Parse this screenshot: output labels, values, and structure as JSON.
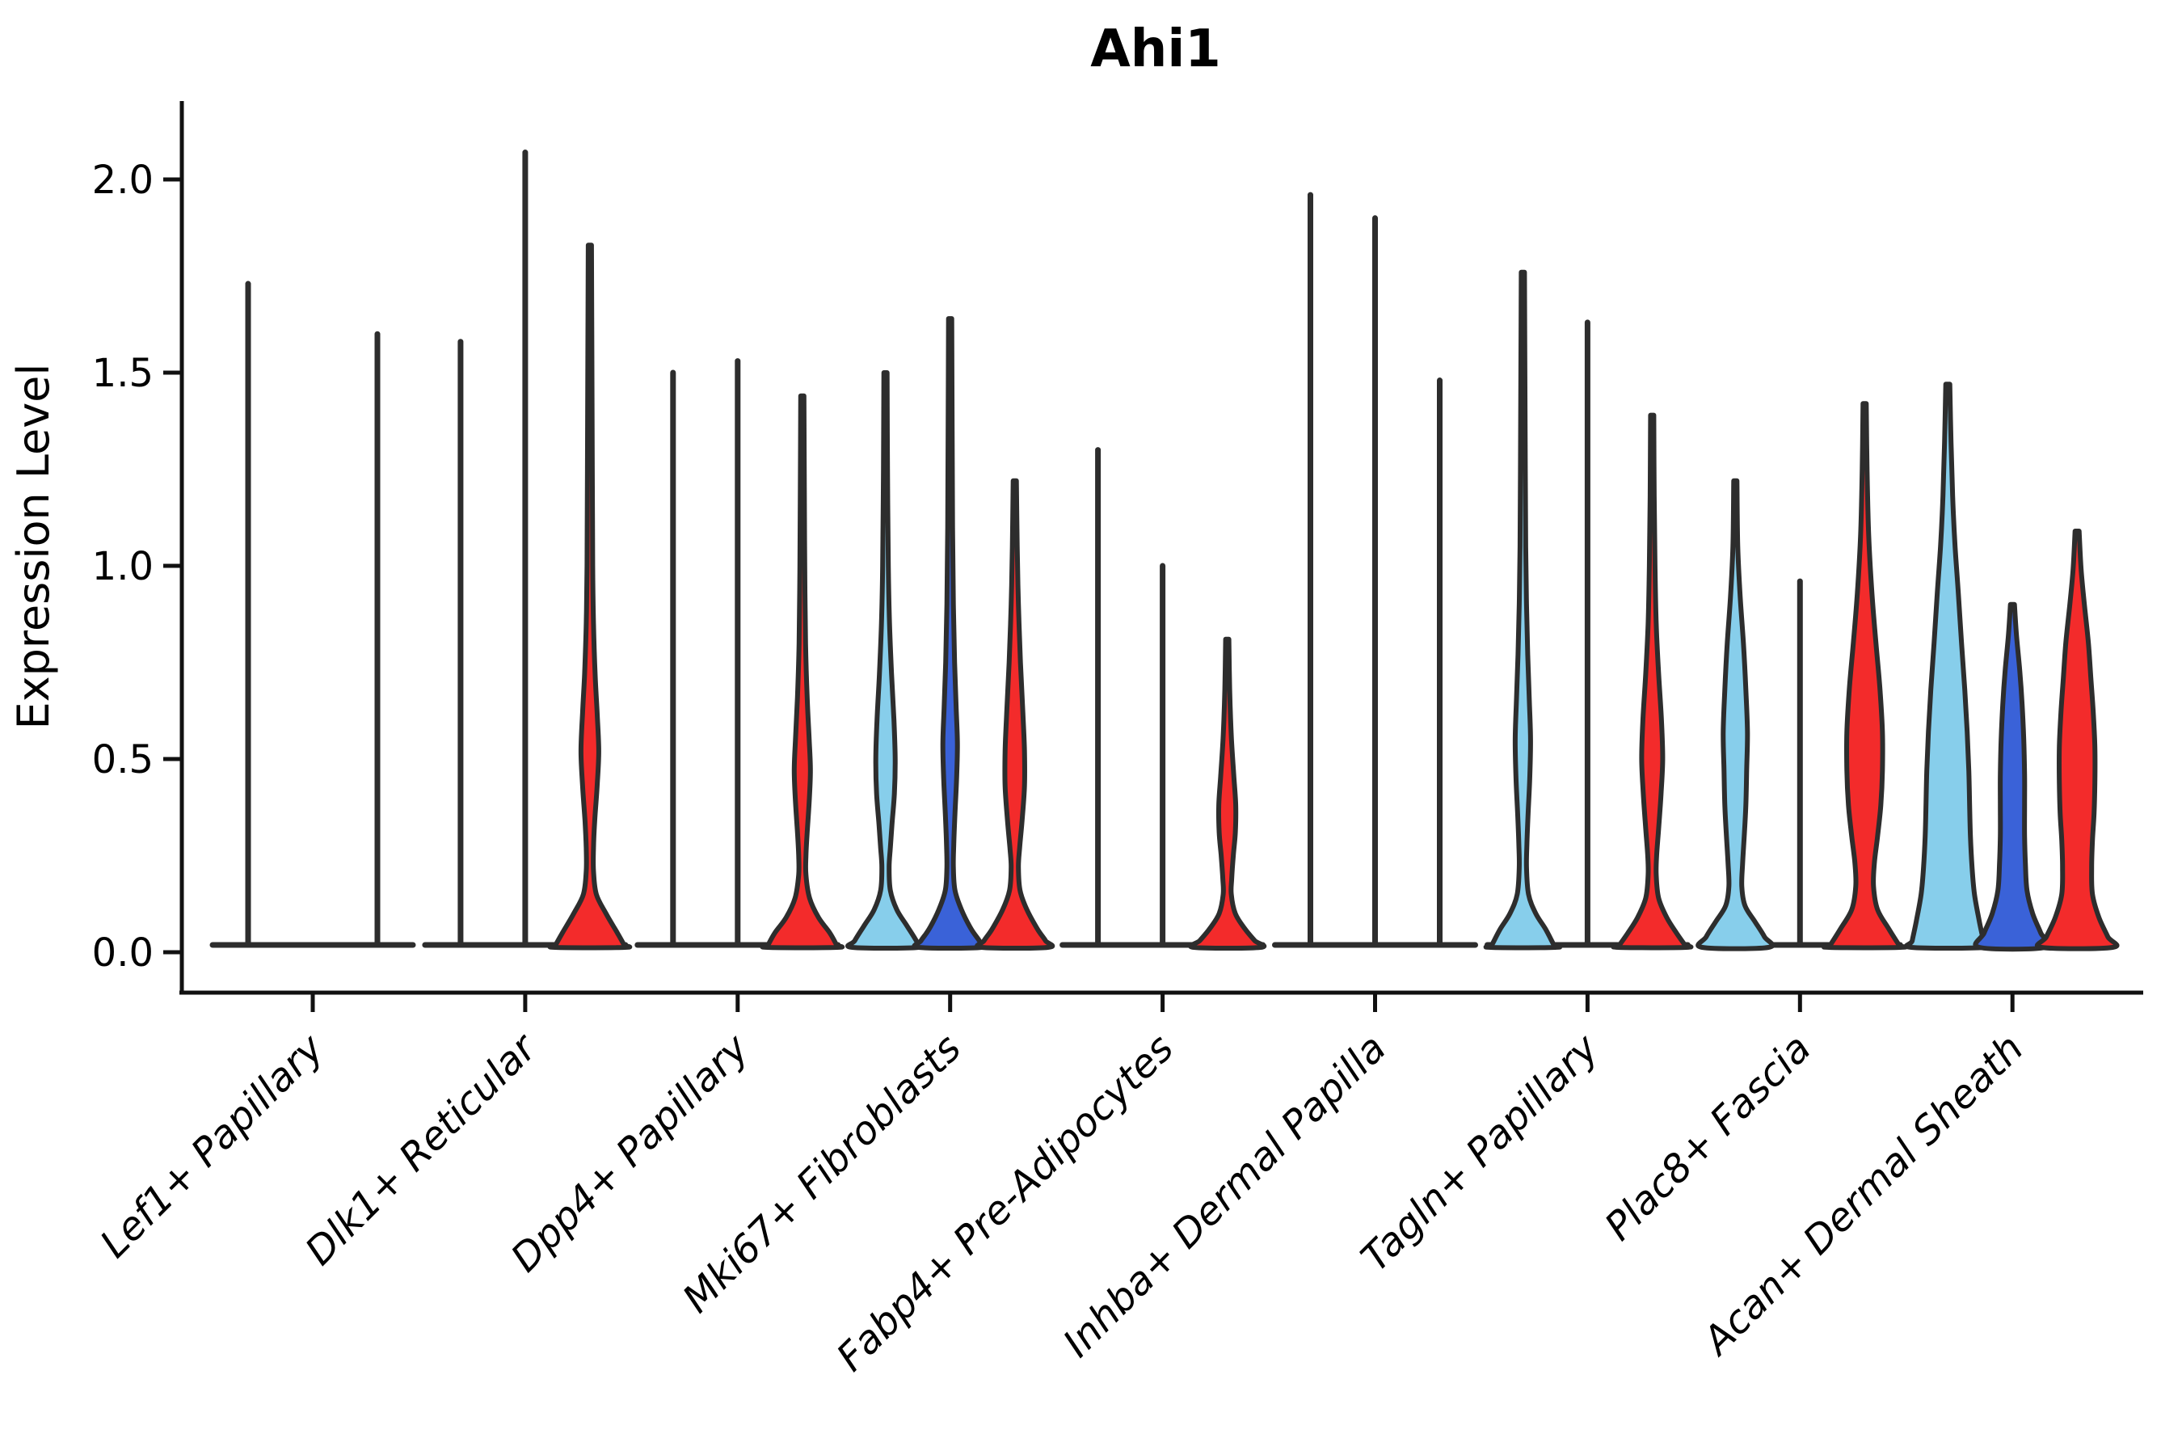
{
  "figure": {
    "title": "Ahi1",
    "ylabel": "Expression Level"
  },
  "axes": {
    "ytick_labels": [
      "0.0",
      "0.5",
      "1.0",
      "1.5",
      "2.0"
    ],
    "ytick_values": [
      0,
      0.5,
      1.0,
      1.5,
      2.0
    ]
  },
  "colors": {
    "skyblue": "#87CEEB",
    "blue": "#3A62D8",
    "red": "#F32B2B",
    "outline": "#2D2D2D",
    "axis": "#111111"
  },
  "chart_data": {
    "type": "violin",
    "title": "Ahi1",
    "xlabel": "",
    "ylabel": "Expression Level",
    "ylim": [
      0,
      2.15
    ],
    "grid": false,
    "legend": "none",
    "categories": [
      "Lef1+ Papillary",
      "Dlk1+ Reticular",
      "Dpp4+ Papillary",
      "Mki67+ Fibroblasts",
      "Fabp4+ Pre-Adipocytes",
      "Inhba+ Dermal Papilla",
      "Tagln+ Papillary",
      "Plac8+ Fascia",
      "Acan+ Dermal Sheath"
    ],
    "hue_colors": [
      "skyblue",
      "blue",
      "red"
    ],
    "groups": [
      {
        "category": "Lef1+ Papillary",
        "violins": [
          {
            "color": "skyblue",
            "max": 1.73,
            "shape": "line"
          },
          {
            "color": "blue",
            "max": 0,
            "shape": "line"
          },
          {
            "color": "red",
            "max": 1.6,
            "shape": "line"
          }
        ]
      },
      {
        "category": "Dlk1+ Reticular",
        "violins": [
          {
            "color": "skyblue",
            "max": 1.58,
            "shape": "line"
          },
          {
            "color": "blue",
            "max": 2.07,
            "shape": "line"
          },
          {
            "color": "red",
            "max": 1.83,
            "shape": "body",
            "profile": [
              [
                1.83,
                2
              ],
              [
                1.55,
                2.5
              ],
              [
                1.25,
                3
              ],
              [
                1.0,
                3.5
              ],
              [
                0.85,
                4.5
              ],
              [
                0.72,
                6.5
              ],
              [
                0.62,
                9
              ],
              [
                0.52,
                11
              ],
              [
                0.43,
                9
              ],
              [
                0.34,
                6
              ],
              [
                0.27,
                4.5
              ],
              [
                0.21,
                4.5
              ],
              [
                0.15,
                8
              ],
              [
                0.1,
                20
              ],
              [
                0.05,
                34
              ],
              [
                0.02,
                42
              ],
              [
                0,
                43
              ]
            ]
          }
        ]
      },
      {
        "category": "Dpp4+ Papillary",
        "violins": [
          {
            "color": "skyblue",
            "max": 1.5,
            "shape": "line"
          },
          {
            "color": "blue",
            "max": 1.53,
            "shape": "line"
          },
          {
            "color": "red",
            "max": 1.44,
            "shape": "body",
            "profile": [
              [
                1.44,
                2
              ],
              [
                1.2,
                2.5
              ],
              [
                1.0,
                3
              ],
              [
                0.8,
                4
              ],
              [
                0.66,
                6
              ],
              [
                0.55,
                8.5
              ],
              [
                0.47,
                10
              ],
              [
                0.39,
                8.5
              ],
              [
                0.31,
                6
              ],
              [
                0.25,
                4.5
              ],
              [
                0.2,
                4.5
              ],
              [
                0.14,
                9
              ],
              [
                0.09,
                20
              ],
              [
                0.05,
                34
              ],
              [
                0.02,
                42
              ],
              [
                0,
                43
              ]
            ]
          }
        ]
      },
      {
        "category": "Mki67+ Fibroblasts",
        "violins": [
          {
            "color": "skyblue",
            "max": 1.5,
            "shape": "body",
            "profile": [
              [
                1.5,
                2
              ],
              [
                1.25,
                2.5
              ],
              [
                1.0,
                3.5
              ],
              [
                0.85,
                5
              ],
              [
                0.72,
                7.5
              ],
              [
                0.6,
                10.5
              ],
              [
                0.5,
                12
              ],
              [
                0.41,
                11
              ],
              [
                0.33,
                8
              ],
              [
                0.27,
                6
              ],
              [
                0.22,
                4.5
              ],
              [
                0.16,
                6
              ],
              [
                0.11,
                14
              ],
              [
                0.07,
                26
              ],
              [
                0.03,
                38
              ],
              [
                0,
                41
              ]
            ]
          },
          {
            "color": "blue",
            "max": 1.64,
            "shape": "body",
            "profile": [
              [
                1.64,
                2
              ],
              [
                1.35,
                2.5
              ],
              [
                1.1,
                3
              ],
              [
                0.9,
                4
              ],
              [
                0.75,
                5.5
              ],
              [
                0.63,
                7.5
              ],
              [
                0.54,
                9
              ],
              [
                0.45,
                8
              ],
              [
                0.36,
                6
              ],
              [
                0.28,
                4.5
              ],
              [
                0.22,
                4
              ],
              [
                0.16,
                6
              ],
              [
                0.11,
                14
              ],
              [
                0.06,
                26
              ],
              [
                0.03,
                36
              ],
              [
                0,
                39
              ]
            ]
          },
          {
            "color": "red",
            "max": 1.22,
            "shape": "body",
            "profile": [
              [
                1.22,
                2
              ],
              [
                1.05,
                3
              ],
              [
                0.9,
                4.5
              ],
              [
                0.75,
                7
              ],
              [
                0.62,
                10
              ],
              [
                0.52,
                12
              ],
              [
                0.43,
                12
              ],
              [
                0.34,
                9
              ],
              [
                0.27,
                6
              ],
              [
                0.22,
                4.5
              ],
              [
                0.16,
                6.5
              ],
              [
                0.11,
                15
              ],
              [
                0.06,
                28
              ],
              [
                0.03,
                38
              ],
              [
                0,
                41
              ]
            ]
          }
        ]
      },
      {
        "category": "Fabp4+ Pre-Adipocytes",
        "violins": [
          {
            "color": "skyblue",
            "max": 1.3,
            "shape": "line"
          },
          {
            "color": "blue",
            "max": 1.0,
            "shape": "line"
          },
          {
            "color": "red",
            "max": 0.81,
            "shape": "body",
            "profile": [
              [
                0.81,
                2
              ],
              [
                0.68,
                3
              ],
              [
                0.56,
                5
              ],
              [
                0.46,
                8
              ],
              [
                0.38,
                10.5
              ],
              [
                0.31,
                10
              ],
              [
                0.25,
                7.5
              ],
              [
                0.19,
                5.5
              ],
              [
                0.15,
                5
              ],
              [
                0.1,
                10
              ],
              [
                0.06,
                22
              ],
              [
                0.03,
                34
              ],
              [
                0,
                41
              ]
            ]
          }
        ]
      },
      {
        "category": "Inhba+ Dermal Papilla",
        "violins": [
          {
            "color": "skyblue",
            "max": 1.96,
            "shape": "line"
          },
          {
            "color": "blue",
            "max": 1.9,
            "shape": "line"
          },
          {
            "color": "red",
            "max": 1.48,
            "shape": "line"
          }
        ]
      },
      {
        "category": "Tagln+ Papillary",
        "violins": [
          {
            "color": "skyblue",
            "max": 1.76,
            "shape": "body",
            "profile": [
              [
                1.76,
                2
              ],
              [
                1.5,
                2.5
              ],
              [
                1.25,
                3
              ],
              [
                1.05,
                3.5
              ],
              [
                0.9,
                4.5
              ],
              [
                0.77,
                6
              ],
              [
                0.65,
                8
              ],
              [
                0.55,
                9.5
              ],
              [
                0.45,
                8.5
              ],
              [
                0.36,
                6.5
              ],
              [
                0.28,
                5
              ],
              [
                0.22,
                4.5
              ],
              [
                0.15,
                7
              ],
              [
                0.1,
                16
              ],
              [
                0.06,
                28
              ],
              [
                0.02,
                38
              ],
              [
                0,
                40
              ]
            ]
          },
          {
            "color": "blue",
            "max": 1.63,
            "shape": "line"
          },
          {
            "color": "red",
            "max": 1.39,
            "shape": "body",
            "profile": [
              [
                1.39,
                2
              ],
              [
                1.18,
                2.5
              ],
              [
                1.0,
                3.5
              ],
              [
                0.85,
                5
              ],
              [
                0.72,
                8
              ],
              [
                0.6,
                11.5
              ],
              [
                0.5,
                13
              ],
              [
                0.41,
                11
              ],
              [
                0.32,
                8
              ],
              [
                0.25,
                5.5
              ],
              [
                0.2,
                5
              ],
              [
                0.14,
                8
              ],
              [
                0.09,
                18
              ],
              [
                0.05,
                30
              ],
              [
                0.02,
                40
              ],
              [
                0,
                42
              ]
            ]
          }
        ]
      },
      {
        "category": "Plac8+ Fascia",
        "violins": [
          {
            "color": "skyblue",
            "max": 1.22,
            "shape": "body",
            "profile": [
              [
                1.22,
                2
              ],
              [
                1.05,
                3
              ],
              [
                0.92,
                6
              ],
              [
                0.8,
                10
              ],
              [
                0.68,
                13
              ],
              [
                0.57,
                15
              ],
              [
                0.47,
                14
              ],
              [
                0.38,
                13
              ],
              [
                0.3,
                11
              ],
              [
                0.23,
                9
              ],
              [
                0.17,
                8
              ],
              [
                0.12,
                12
              ],
              [
                0.08,
                24
              ],
              [
                0.04,
                36
              ],
              [
                0,
                41
              ]
            ]
          },
          {
            "color": "blue",
            "max": 0.96,
            "shape": "line"
          },
          {
            "color": "red",
            "max": 1.42,
            "shape": "body",
            "profile": [
              [
                1.42,
                2
              ],
              [
                1.25,
                3
              ],
              [
                1.08,
                5
              ],
              [
                0.93,
                9
              ],
              [
                0.8,
                14
              ],
              [
                0.68,
                19
              ],
              [
                0.57,
                22
              ],
              [
                0.47,
                22
              ],
              [
                0.38,
                20
              ],
              [
                0.3,
                16
              ],
              [
                0.23,
                12
              ],
              [
                0.17,
                11
              ],
              [
                0.11,
                16
              ],
              [
                0.06,
                30
              ],
              [
                0.02,
                42
              ],
              [
                0,
                44
              ]
            ]
          }
        ]
      },
      {
        "category": "Acan+ Dermal Sheath",
        "violins": [
          {
            "color": "skyblue",
            "max": 1.47,
            "shape": "body",
            "profile": [
              [
                1.47,
                2.5
              ],
              [
                1.32,
                4
              ],
              [
                1.18,
                6
              ],
              [
                1.05,
                9
              ],
              [
                0.93,
                13
              ],
              [
                0.8,
                17
              ],
              [
                0.68,
                21
              ],
              [
                0.57,
                24
              ],
              [
                0.47,
                26
              ],
              [
                0.38,
                27
              ],
              [
                0.3,
                28
              ],
              [
                0.22,
                30
              ],
              [
                0.15,
                33
              ],
              [
                0.08,
                39
              ],
              [
                0.03,
                44
              ],
              [
                0,
                45
              ]
            ]
          },
          {
            "color": "blue",
            "max": 0.9,
            "shape": "body",
            "profile": [
              [
                0.9,
                2.5
              ],
              [
                0.82,
                5
              ],
              [
                0.73,
                9
              ],
              [
                0.64,
                12
              ],
              [
                0.55,
                14
              ],
              [
                0.46,
                15
              ],
              [
                0.38,
                15
              ],
              [
                0.3,
                15
              ],
              [
                0.23,
                16
              ],
              [
                0.16,
                18
              ],
              [
                0.1,
                25
              ],
              [
                0.05,
                35
              ],
              [
                0,
                41
              ]
            ]
          },
          {
            "color": "red",
            "max": 1.09,
            "shape": "body",
            "profile": [
              [
                1.09,
                2.5
              ],
              [
                0.99,
                5
              ],
              [
                0.9,
                9
              ],
              [
                0.8,
                14
              ],
              [
                0.71,
                17
              ],
              [
                0.62,
                20
              ],
              [
                0.53,
                22
              ],
              [
                0.44,
                22
              ],
              [
                0.36,
                21
              ],
              [
                0.29,
                19
              ],
              [
                0.22,
                18
              ],
              [
                0.15,
                19
              ],
              [
                0.09,
                27
              ],
              [
                0.04,
                38
              ],
              [
                0,
                44
              ]
            ]
          }
        ]
      }
    ]
  }
}
